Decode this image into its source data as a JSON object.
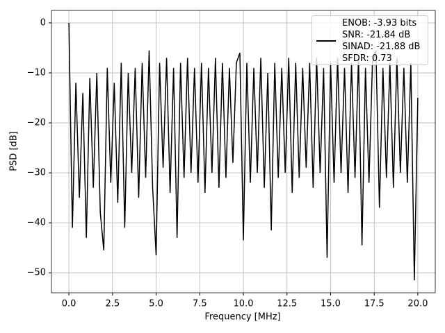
{
  "chart_data": {
    "type": "line",
    "xlabel": "Frequency [MHz]",
    "ylabel": "PSD [dB]",
    "xlim": [
      -1.0,
      21.0
    ],
    "ylim": [
      -54.0,
      2.5
    ],
    "xticks": [
      {
        "value": 0,
        "label": "0.0"
      },
      2.5,
      {
        "value": 5,
        "label": "5.0"
      },
      7.5,
      {
        "value": 10,
        "label": "10.0"
      },
      12.5,
      {
        "value": 15,
        "label": "15.0"
      },
      17.5,
      {
        "value": 20,
        "label": "20.0"
      }
    ],
    "yticks": [
      {
        "value": -50,
        "label": "−50"
      },
      {
        "value": -40,
        "label": "−40"
      },
      {
        "value": -30,
        "label": "−30"
      },
      {
        "value": -20,
        "label": "−20"
      },
      {
        "value": -10,
        "label": "−10"
      },
      0
    ],
    "grid": true,
    "legend": "upper right",
    "x": [
      0,
      0.2,
      0.4,
      0.6,
      0.8,
      1.0,
      1.2,
      1.4,
      1.6,
      1.8,
      2.0,
      2.2,
      2.4,
      2.6,
      2.8,
      3.0,
      3.2,
      3.4,
      3.6,
      3.8,
      4.0,
      4.2,
      4.4,
      4.6,
      4.8,
      5.0,
      5.2,
      5.4,
      5.6,
      5.8,
      6.0,
      6.2,
      6.4,
      6.6,
      6.8,
      7.0,
      7.2,
      7.4,
      7.6,
      7.8,
      8.0,
      8.2,
      8.4,
      8.6,
      8.8,
      9.0,
      9.2,
      9.4,
      9.6,
      9.8,
      10.0,
      10.2,
      10.4,
      10.6,
      10.8,
      11.0,
      11.2,
      11.4,
      11.6,
      11.8,
      12.0,
      12.2,
      12.4,
      12.6,
      12.8,
      13.0,
      13.2,
      13.4,
      13.6,
      13.8,
      14.0,
      14.2,
      14.4,
      14.6,
      14.8,
      15.0,
      15.2,
      15.4,
      15.6,
      15.8,
      16.0,
      16.2,
      16.4,
      16.6,
      16.8,
      17.0,
      17.2,
      17.4,
      17.6,
      17.8,
      18.0,
      18.2,
      18.4,
      18.6,
      18.8,
      19.0,
      19.2,
      19.4,
      19.6,
      19.8,
      20.0
    ],
    "series": [
      {
        "name": "ENOB: -3.93 bits\nSNR: -21.84 dB\nSINAD: -21.88 dB\nSFDR: 0.73",
        "color": "#000000",
        "values": [
          0,
          -41,
          -12,
          -35,
          -14,
          -43,
          -11,
          -33,
          -10,
          -38,
          -45.5,
          -9,
          -32,
          -12,
          -36,
          -8,
          -41,
          -10,
          -30,
          -9,
          -35,
          -8,
          -31,
          -5.5,
          -33,
          -46.5,
          -8,
          -29,
          -7,
          -34,
          -9,
          -43,
          -8,
          -31,
          -7,
          -30,
          -9,
          -32,
          -8,
          -34,
          -9,
          -30,
          -7,
          -33,
          -8,
          -31,
          -9,
          -28,
          -8,
          -6,
          -43.5,
          -8,
          -32,
          -9,
          -30,
          -7,
          -33,
          -10,
          -41.5,
          -8,
          -31,
          -9,
          -30,
          -7,
          -34,
          -8,
          -31,
          -9,
          -29,
          -8,
          -33,
          -7,
          -30,
          -9,
          -47,
          -8,
          -32,
          -7,
          -30,
          -9,
          -34,
          -8,
          -31,
          -7,
          -44.5,
          -9,
          -32,
          -8,
          -5.5,
          -37,
          -9,
          -31,
          -8,
          -33,
          -7,
          -30,
          -9,
          -32,
          -8,
          -51.5,
          -15
        ]
      }
    ]
  }
}
